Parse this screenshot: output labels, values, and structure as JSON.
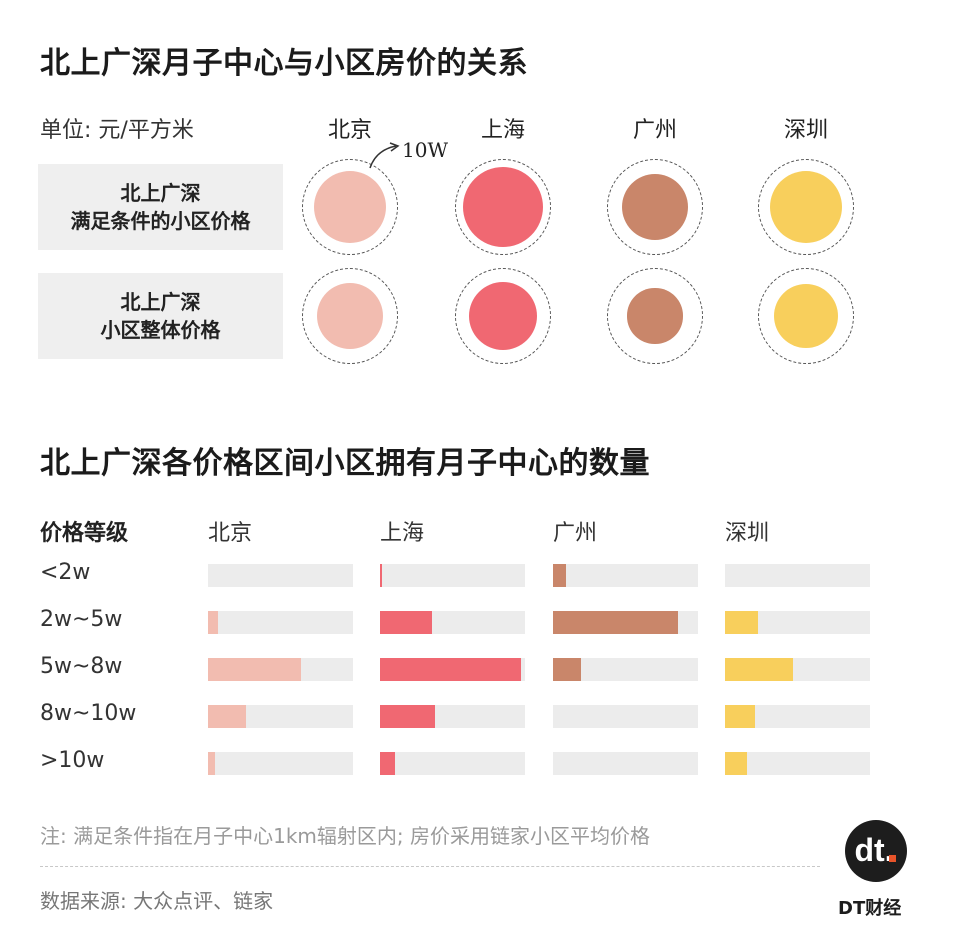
{
  "chart_data": [
    {
      "type": "bubble",
      "title": "北上广深月子中心与小区房价的关系",
      "unit_label": "单位: 元/平方米",
      "scale_annotation": "10W",
      "categories": [
        "北京",
        "上海",
        "广州",
        "深圳"
      ],
      "reference_value": 100000,
      "rows": [
        {
          "label_lines": [
            "北上广深",
            "满足条件的小区价格"
          ],
          "values": [
            71000,
            88000,
            59000,
            72000
          ]
        },
        {
          "label_lines": [
            "北上广深",
            "小区整体价格"
          ],
          "values": [
            59000,
            64000,
            41000,
            57000
          ]
        }
      ],
      "colors": {
        "北京": "#f2bcb0",
        "上海": "#f06872",
        "广州": "#c9866a",
        "深圳": "#f8cf5c"
      }
    },
    {
      "type": "bar",
      "title": "北上广深各价格区间小区拥有月子中心的数量",
      "row_header": "价格等级",
      "categories": [
        "<2w",
        "2w~5w",
        "5w~8w",
        "8w~10w",
        ">10w"
      ],
      "series": [
        {
          "name": "北京",
          "values": [
            0,
            0.07,
            0.64,
            0.26,
            0.05
          ],
          "color": "#f2bcb0"
        },
        {
          "name": "上海",
          "values": [
            0.01,
            0.36,
            0.97,
            0.38,
            0.1
          ],
          "color": "#f06872"
        },
        {
          "name": "广州",
          "values": [
            0.09,
            0.86,
            0.19,
            0,
            0
          ],
          "color": "#c9866a"
        },
        {
          "name": "深圳",
          "values": [
            0,
            0.23,
            0.47,
            0.21,
            0.15
          ],
          "color": "#f8cf5c"
        }
      ],
      "track_color": "#ececec",
      "xlim": [
        0,
        1
      ]
    }
  ],
  "footer": {
    "note": "注: 满足条件指在月子中心1km辐射区内; 房价采用链家小区平均价格",
    "source": "数据来源: 大众点评、链家",
    "logo_mark": "dt.",
    "logo_text": "DT财经"
  }
}
